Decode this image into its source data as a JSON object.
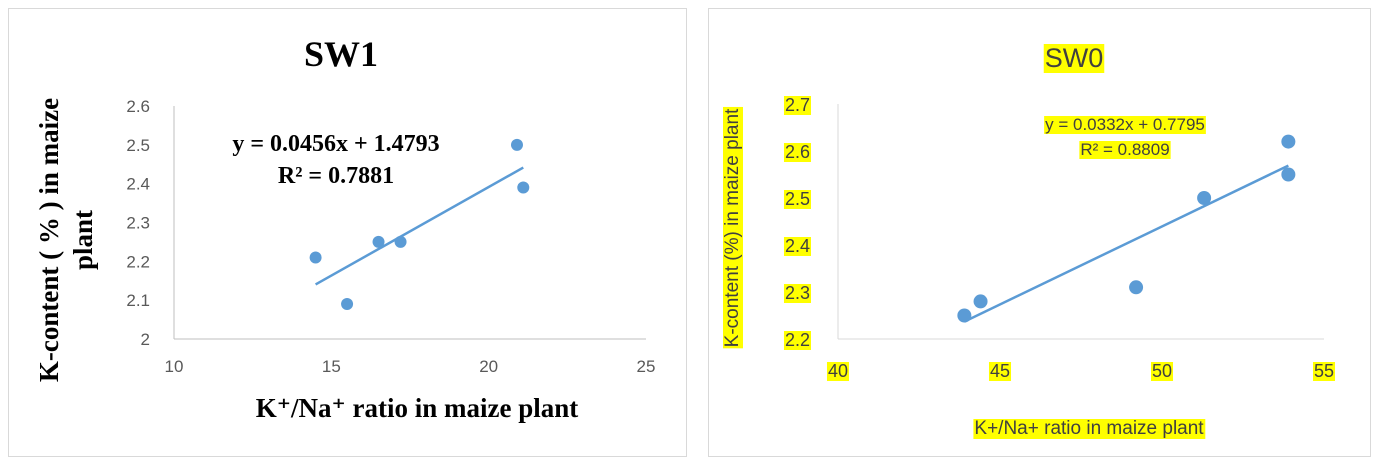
{
  "chart_data": [
    {
      "type": "scatter",
      "title": "SW1",
      "xlabel": "K⁺/Na⁺ ratio in maize plant",
      "ylabel_lines": [
        "K-content ( % ) in maize",
        "plant"
      ],
      "xlim": [
        10,
        25
      ],
      "ylim": [
        2,
        2.6
      ],
      "x_ticks": [
        "10",
        "15",
        "20",
        "25"
      ],
      "y_ticks": [
        "2",
        "2.1",
        "2.2",
        "2.3",
        "2.4",
        "2.5",
        "2.6"
      ],
      "grid": false,
      "series": [
        {
          "x": [
            14.5,
            15.5,
            16.5,
            17.2,
            20.9,
            21.1
          ],
          "y": [
            2.21,
            2.09,
            2.25,
            2.25,
            2.5,
            2.39
          ]
        }
      ],
      "trendline": {
        "slope": 0.0456,
        "intercept": 1.4793,
        "x_range": [
          14.5,
          21.1
        ]
      },
      "equation_lines": [
        "y = 0.0456x + 1.4793",
        "R² = 0.7881"
      ],
      "colors": {
        "marker": "#5b9bd5",
        "line": "#5b9bd5",
        "axis": "#bfbfbf",
        "text": "#000000",
        "tick": "#595959"
      }
    },
    {
      "type": "scatter",
      "title": "SW0",
      "xlabel": "K+/Na+ ratio in maize plant",
      "ylabel": "K-content (%) in maize plant",
      "xlim": [
        40,
        55
      ],
      "ylim": [
        2.2,
        2.7
      ],
      "x_ticks": [
        "40",
        "45",
        "50",
        "55"
      ],
      "y_ticks": [
        "2.2",
        "2.3",
        "2.4",
        "2.5",
        "2.6",
        "2.7"
      ],
      "grid": false,
      "series": [
        {
          "x": [
            43.9,
            44.4,
            49.2,
            51.3,
            53.9,
            53.9
          ],
          "y": [
            2.25,
            2.28,
            2.31,
            2.5,
            2.62,
            2.55
          ]
        }
      ],
      "trendline": {
        "slope": 0.0332,
        "intercept": 0.7795,
        "x_range": [
          43.9,
          53.9
        ]
      },
      "equation_lines": [
        "y = 0.0332x + 0.7795",
        "R² = 0.8809"
      ],
      "colors": {
        "marker": "#5b9bd5",
        "line": "#5b9bd5",
        "axis": "#d9d9d9",
        "text": "#404040",
        "highlight": "#ffff00"
      }
    }
  ]
}
